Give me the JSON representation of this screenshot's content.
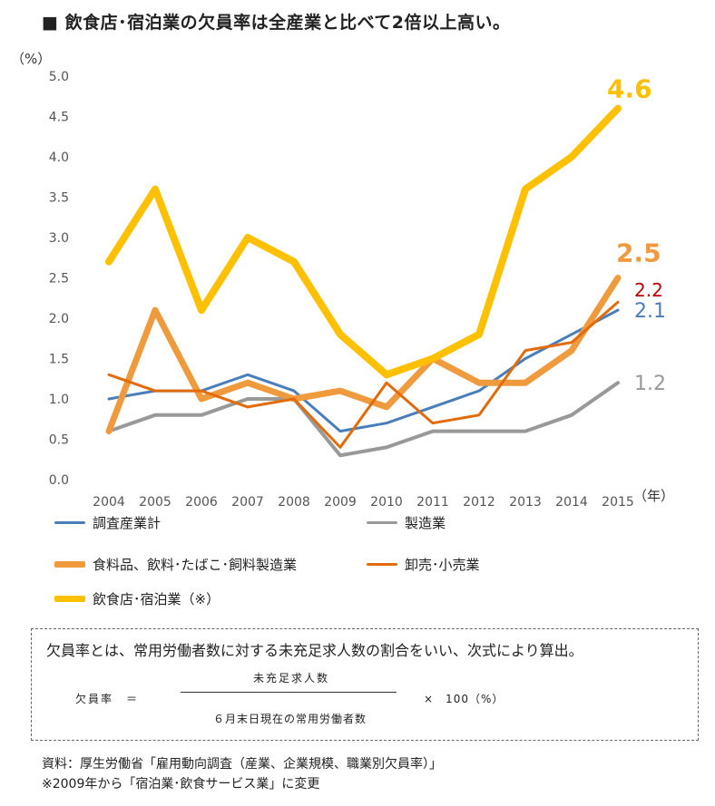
{
  "title": "■ 飲食店･宿泊業の欠員率は全産業と比べて2倍以上高い。",
  "chart_data": {
    "type": "line",
    "ylabel": "（%）",
    "xlabel": "（年）",
    "ylim": [
      0,
      5
    ],
    "yticks": [
      "0.0",
      "0.5",
      "1.0",
      "1.5",
      "2.0",
      "2.5",
      "3.0",
      "3.5",
      "4.0",
      "4.5",
      "5.0"
    ],
    "categories": [
      "2004",
      "2005",
      "2006",
      "2007",
      "2008",
      "2009",
      "2010",
      "2011",
      "2012",
      "2013",
      "2014",
      "2015"
    ],
    "grid": false,
    "series": [
      {
        "name": "調査産業計",
        "color": "#4a7ebb",
        "values": [
          1.0,
          1.1,
          1.1,
          1.3,
          1.1,
          0.6,
          0.7,
          0.9,
          1.1,
          1.5,
          1.8,
          2.1
        ],
        "end_label": "2.1"
      },
      {
        "name": "製造業",
        "color": "#999999",
        "values": [
          0.6,
          0.8,
          0.8,
          1.0,
          1.0,
          0.3,
          0.4,
          0.6,
          0.6,
          0.6,
          0.8,
          1.2
        ],
        "end_label": "1.2"
      },
      {
        "name": "食料品、飲料･たばこ･飼料製造業",
        "color": "#f09a3e",
        "values": [
          0.6,
          2.1,
          1.0,
          1.2,
          1.0,
          1.1,
          0.9,
          1.5,
          1.2,
          1.2,
          1.6,
          2.5
        ],
        "end_label": "2.5"
      },
      {
        "name": "卸売･小売業",
        "color": "#e26b0a",
        "values": [
          1.3,
          1.1,
          1.1,
          0.9,
          1.0,
          0.4,
          1.2,
          0.7,
          0.8,
          1.6,
          1.7,
          2.2
        ],
        "end_label": "2.2"
      },
      {
        "name": "飲食店･宿泊業（※）",
        "color": "#ffc000",
        "values": [
          2.7,
          3.6,
          2.1,
          3.0,
          2.7,
          1.8,
          1.3,
          1.5,
          1.8,
          3.6,
          4.0,
          4.6
        ],
        "end_label": "4.6"
      }
    ],
    "end_label_colors": {
      "2.1": "#4a7ebb",
      "1.2": "#999999",
      "2.5": "#f09a3e",
      "2.2": "#c00000",
      "4.6": "#ffc000"
    }
  },
  "formula": {
    "intro": "欠員率とは、常用労働者数に対する未充足求人数の割合をいい、次式により算出。",
    "label": "欠員率　＝",
    "numerator": "未充足求人数",
    "denominator": "６月末日現在の常用労働者数",
    "multiplier": "×　100（%）"
  },
  "source": {
    "line1": "資料：厚生労働省「雇用動向調査（産業、企業規模、職業別欠員率）」",
    "line2": "※2009年から「宿泊業･飲食サービス業」に変更"
  }
}
